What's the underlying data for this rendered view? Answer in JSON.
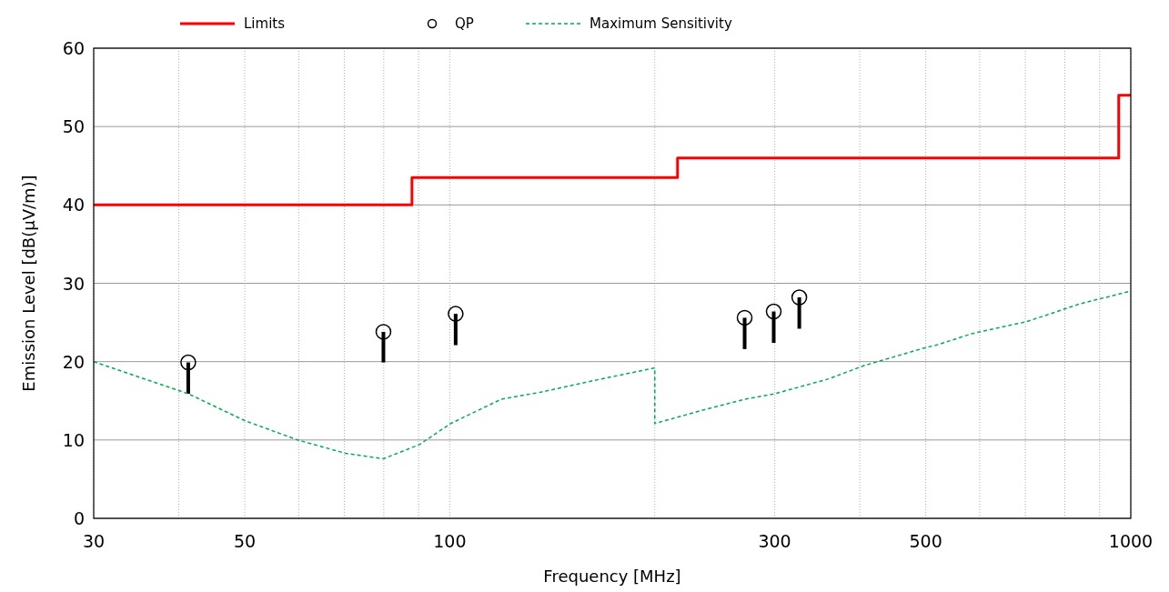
{
  "chart_data": {
    "type": "line",
    "xlabel": "Frequency [MHz]",
    "ylabel": "Emission Level [dB(μV/m)]",
    "log": "x",
    "xlim": [
      30,
      1000
    ],
    "ylim": [
      0,
      60
    ],
    "xticks": [
      30,
      {
        "value": 40,
        "label": null
      },
      50,
      {
        "value": 60,
        "label": null
      },
      {
        "value": 70,
        "label": null
      },
      {
        "value": 80,
        "label": null
      },
      {
        "value": 90,
        "label": null
      },
      100,
      {
        "value": 200,
        "label": null
      },
      300,
      {
        "value": 400,
        "label": null
      },
      500,
      {
        "value": 600,
        "label": null
      },
      {
        "value": 700,
        "label": null
      },
      {
        "value": 800,
        "label": null
      },
      {
        "value": 900,
        "label": null
      },
      1000
    ],
    "yticks": [
      0,
      10,
      20,
      30,
      40,
      50,
      60
    ],
    "grid": true,
    "legend": "top",
    "series": [
      {
        "name": "Limits",
        "type": "step",
        "color": "#ff0000",
        "line_style": "solid",
        "x": [
          30,
          88,
          216,
          960,
          1000
        ],
        "values": [
          40,
          43.5,
          46,
          54,
          54
        ]
      },
      {
        "name": "QP",
        "type": "scatter",
        "color": "#000000",
        "marker": "circle",
        "x": [
          41.3,
          79.9,
          102,
          271,
          299,
          326
        ],
        "values": [
          19.9,
          23.8,
          26.1,
          25.6,
          26.4,
          28.2
        ],
        "errors": [
          [
            15.9,
            19.9
          ],
          [
            19.9,
            23.8
          ],
          [
            22.1,
            26.1
          ],
          [
            21.6,
            25.6
          ],
          [
            22.4,
            26.4
          ],
          [
            24.2,
            28.2
          ]
        ]
      },
      {
        "name": "Maximum Sensitivity",
        "color": "#00b050",
        "line_style": "dashed",
        "x": [
          30,
          41.3,
          49.9,
          59.8,
          70.3,
          79.9,
          90.2,
          100.3,
          119,
          136,
          163,
          200,
          200,
          235,
          271,
          300,
          360,
          406,
          500,
          518,
          586,
          703,
          844,
          1000
        ],
        "values": [
          20,
          15.9,
          12.5,
          10,
          8.3,
          7.6,
          9.4,
          12.1,
          15.2,
          16.1,
          17.6,
          19.2,
          12.1,
          13.8,
          15.2,
          15.9,
          17.8,
          19.5,
          21.8,
          22.1,
          23.6,
          25.1,
          27.4,
          29.0
        ]
      }
    ]
  }
}
